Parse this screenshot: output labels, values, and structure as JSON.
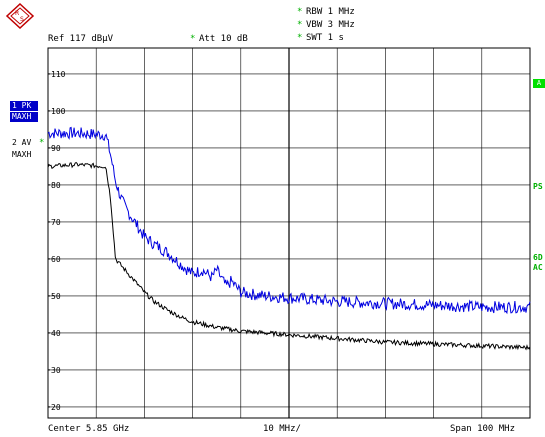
{
  "header": {
    "rbw": "RBW 1 MHz",
    "vbw": "VBW 3 MHz",
    "swt": "SWT 1 s",
    "ref": "Ref  117 dBµV",
    "att": "Att  10 dB",
    "mark": "*"
  },
  "left_panel": {
    "trace1_label": "1 PK",
    "trace1_mode": "MAXH",
    "trace2_label": "2 AV",
    "trace2_mode": "MAXH"
  },
  "right_panel": {
    "a_box": "A",
    "ps": "PS",
    "sixd": "6D",
    "ac": "AC"
  },
  "footer": {
    "center": "Center  5.85 GHz",
    "div": "10 MHz/",
    "span": "Span  100 MHz"
  },
  "colors": {
    "trace_pk": "#0000e0",
    "trace_av": "#000000",
    "grid": "#000000",
    "status_green": "#00b000"
  },
  "chart_data": {
    "type": "line",
    "ylim": [
      17,
      117
    ],
    "xlim": [
      5.8,
      5.9
    ],
    "x_unit": "GHz",
    "y_unit": "dBµV",
    "y_ticks": [
      110,
      100,
      90,
      80,
      70,
      60,
      50,
      40,
      30,
      20
    ],
    "x_ticks_text": [
      "Center  5.85 GHz",
      "10 MHz/",
      "Span  100 MHz"
    ],
    "series": [
      {
        "name": "1 PK",
        "color": "#0000e0",
        "x": [
          5.8,
          5.806,
          5.812,
          5.813,
          5.814,
          5.815,
          5.816,
          5.818,
          5.82,
          5.822,
          5.825,
          5.828,
          5.83,
          5.832,
          5.834,
          5.835,
          5.837,
          5.838,
          5.84,
          5.842,
          5.845,
          5.85,
          5.86,
          5.87,
          5.88,
          5.89,
          5.9
        ],
        "y": [
          94,
          94,
          93.5,
          88,
          81,
          77,
          74,
          70,
          66,
          64,
          61.5,
          58,
          56,
          57,
          55,
          57,
          52.5,
          54,
          51,
          50.5,
          50,
          49.5,
          48.5,
          48,
          47.5,
          47,
          47
        ]
      },
      {
        "name": "2 AV",
        "color": "#000000",
        "x": [
          5.8,
          5.806,
          5.812,
          5.813,
          5.814,
          5.816,
          5.818,
          5.82,
          5.822,
          5.825,
          5.828,
          5.83,
          5.835,
          5.84,
          5.845,
          5.85,
          5.86,
          5.87,
          5.88,
          5.89,
          5.9
        ],
        "y": [
          85,
          85.5,
          85,
          76,
          60,
          57,
          54,
          51,
          48.5,
          46,
          44,
          43,
          41.5,
          40.5,
          40,
          39.5,
          38.5,
          37.5,
          37,
          36.5,
          36
        ]
      }
    ]
  }
}
